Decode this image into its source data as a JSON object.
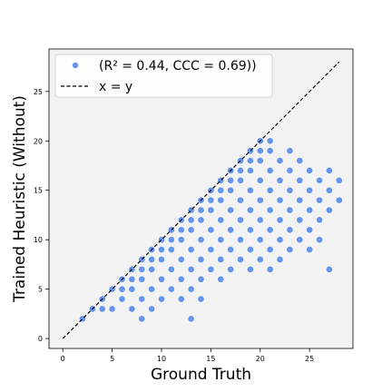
{
  "chart_data": {
    "type": "scatter",
    "title": "",
    "xlabel": "Ground Truth",
    "ylabel": "Trained Heuristic (Without)",
    "xlim": [
      -1.4,
      29.4
    ],
    "ylim": [
      -1.0,
      29.3
    ],
    "xticks": [
      0,
      5,
      10,
      15,
      20,
      25
    ],
    "yticks": [
      0,
      5,
      10,
      15,
      20,
      25
    ],
    "grid": false,
    "legend_position": "top-left",
    "series": [
      {
        "name": "(R² = 0.44, CCC = 0.69))",
        "kind": "points",
        "color": "#6495ED",
        "description": "dense lattice of integer predictions; lower-right wedge below x=y",
        "rows": [
          {
            "y": 2,
            "x": [
              2,
              8
            ]
          },
          {
            "y": 3,
            "x": [
              3,
              4,
              5,
              7,
              9
            ]
          },
          {
            "y": 4,
            "x": [
              4,
              6,
              8,
              10,
              12,
              14
            ]
          },
          {
            "y": 5,
            "x": [
              5,
              6,
              7,
              9,
              11,
              13
            ]
          },
          {
            "y": 6,
            "x": [
              6,
              7,
              8,
              10,
              12,
              14,
              16
            ]
          },
          {
            "y": 7,
            "x": [
              7,
              8,
              9,
              11,
              13,
              15,
              17,
              19,
              21,
              27
            ]
          },
          {
            "y": 8,
            "x": [
              8,
              9,
              10,
              12,
              14,
              16,
              18,
              20,
              22
            ]
          },
          {
            "y": 9,
            "x": [
              9,
              10,
              11,
              13,
              15,
              17,
              19,
              21,
              23,
              25
            ]
          },
          {
            "y": 10,
            "x": [
              10,
              11,
              12,
              14,
              16,
              18,
              20,
              22,
              24,
              26
            ]
          },
          {
            "y": 11,
            "x": [
              11,
              12,
              13,
              15,
              17,
              19,
              21,
              23,
              25
            ]
          },
          {
            "y": 12,
            "x": [
              12,
              13,
              14,
              16,
              18,
              20,
              22,
              24,
              26
            ]
          },
          {
            "y": 13,
            "x": [
              13,
              14,
              15,
              17,
              19,
              21,
              23,
              25,
              27
            ]
          },
          {
            "y": 14,
            "x": [
              14,
              15,
              16,
              18,
              20,
              22,
              24,
              26,
              28
            ]
          },
          {
            "y": 15,
            "x": [
              15,
              16,
              17,
              19,
              21,
              23,
              25,
              27
            ]
          },
          {
            "y": 16,
            "x": [
              16,
              17,
              18,
              20,
              22,
              24,
              26,
              28
            ]
          },
          {
            "y": 17,
            "x": [
              17,
              18,
              19,
              21,
              23,
              25,
              27
            ]
          },
          {
            "y": 18,
            "x": [
              18,
              19,
              20,
              22,
              24
            ]
          },
          {
            "y": 19,
            "x": [
              19,
              20,
              21,
              23
            ]
          },
          {
            "y": 20,
            "x": [
              20,
              21
            ]
          }
        ],
        "values": [
          {
            "x": 13,
            "y": 2
          }
        ]
      },
      {
        "name": "x = y",
        "kind": "line",
        "color": "#000000",
        "dash": "dashed",
        "x": [
          0,
          28
        ],
        "y": [
          0,
          28
        ]
      }
    ]
  }
}
